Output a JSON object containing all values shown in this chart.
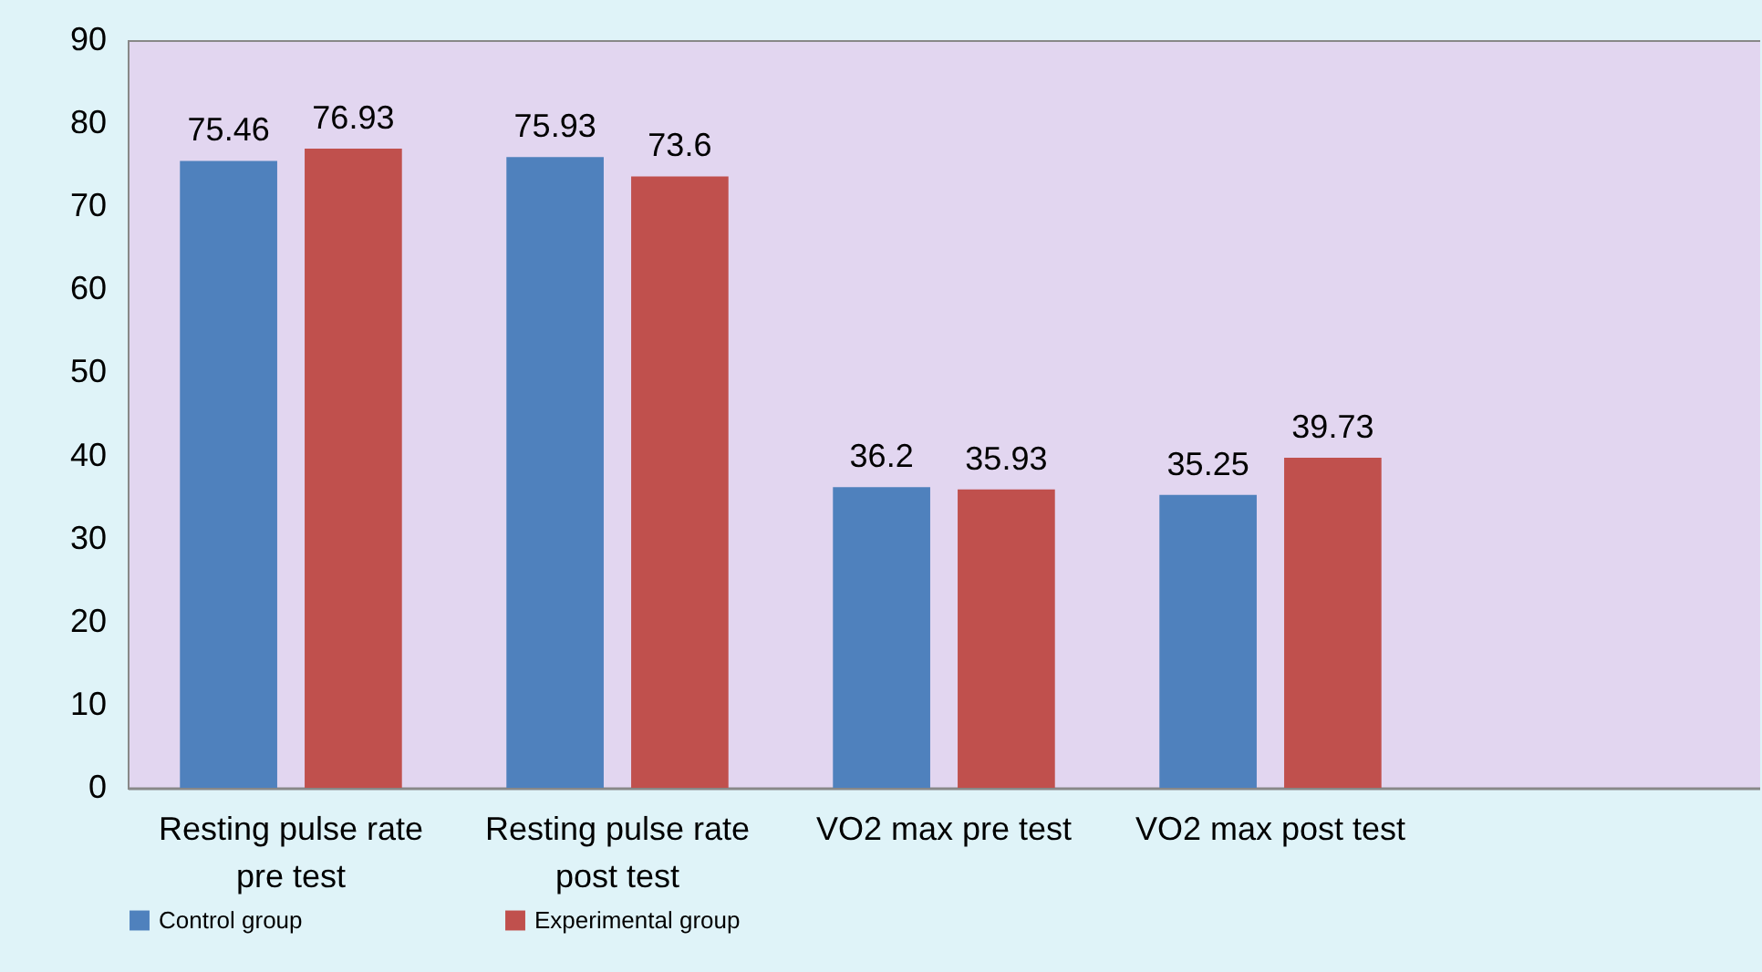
{
  "chart_data": {
    "type": "bar",
    "categories": [
      "Resting pulse rate\npre test",
      "Resting pulse rate\npost test",
      "VO2 max  pre test",
      "VO2 max post test",
      null
    ],
    "series": [
      {
        "name": "Control group",
        "color": "#4f81bd",
        "values": [
          75.46,
          75.93,
          36.2,
          35.25,
          null
        ]
      },
      {
        "name": "Experimental group",
        "color": "#c0504d",
        "values": [
          76.93,
          73.6,
          35.93,
          39.73,
          null
        ]
      }
    ],
    "ylim": [
      0,
      90
    ],
    "yticks": [
      0,
      10,
      20,
      30,
      40,
      50,
      60,
      70,
      80,
      90
    ],
    "grid": false,
    "legend": "bottom",
    "data_labels": true
  }
}
